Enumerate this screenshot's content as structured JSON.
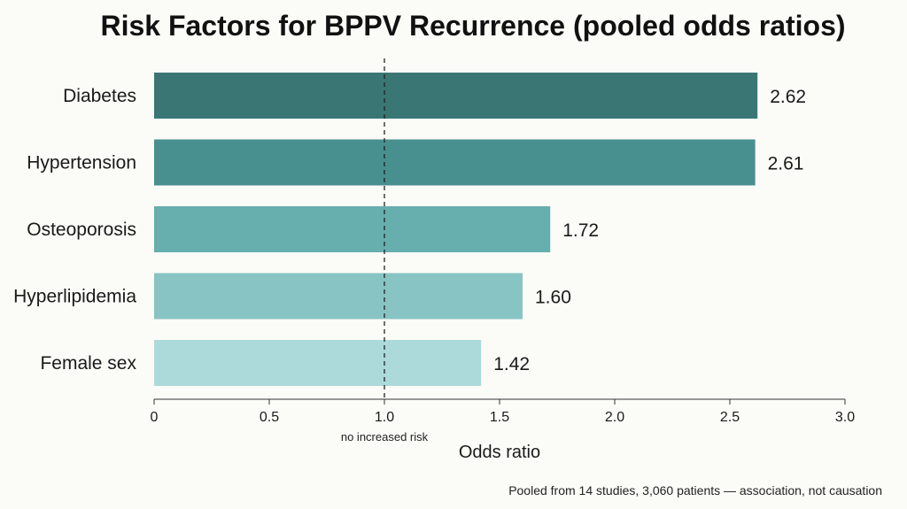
{
  "chart_data": {
    "type": "bar",
    "orientation": "horizontal",
    "title": "Risk Factors for BPPV Recurrence (pooled odds ratios)",
    "xlabel": "Odds ratio",
    "ylabel": "",
    "xlim": [
      0,
      3.0
    ],
    "categories": [
      "Diabetes",
      "Hypertension",
      "Osteoporosis",
      "Hyperlipidemia",
      "Female sex"
    ],
    "values": [
      2.62,
      2.61,
      1.72,
      1.6,
      1.42
    ],
    "value_labels": [
      "2.62",
      "2.61",
      "1.72",
      "1.60",
      "1.42"
    ],
    "colors": [
      "#3a7774",
      "#48908f",
      "#67aeae",
      "#89c4c4",
      "#acdadb"
    ],
    "x_ticks": [
      0,
      0.5,
      1.0,
      1.5,
      2.0,
      2.5,
      3.0
    ],
    "x_tick_labels": [
      "0",
      "0.5",
      "1.0",
      "1.5",
      "2.0",
      "2.5",
      "3.0"
    ],
    "reference_line": {
      "x": 1.0,
      "label": "no increased risk",
      "style": "dashed"
    },
    "grid": false,
    "footnote": "Pooled from 14 studies, 3,060 patients — association, not causation"
  }
}
